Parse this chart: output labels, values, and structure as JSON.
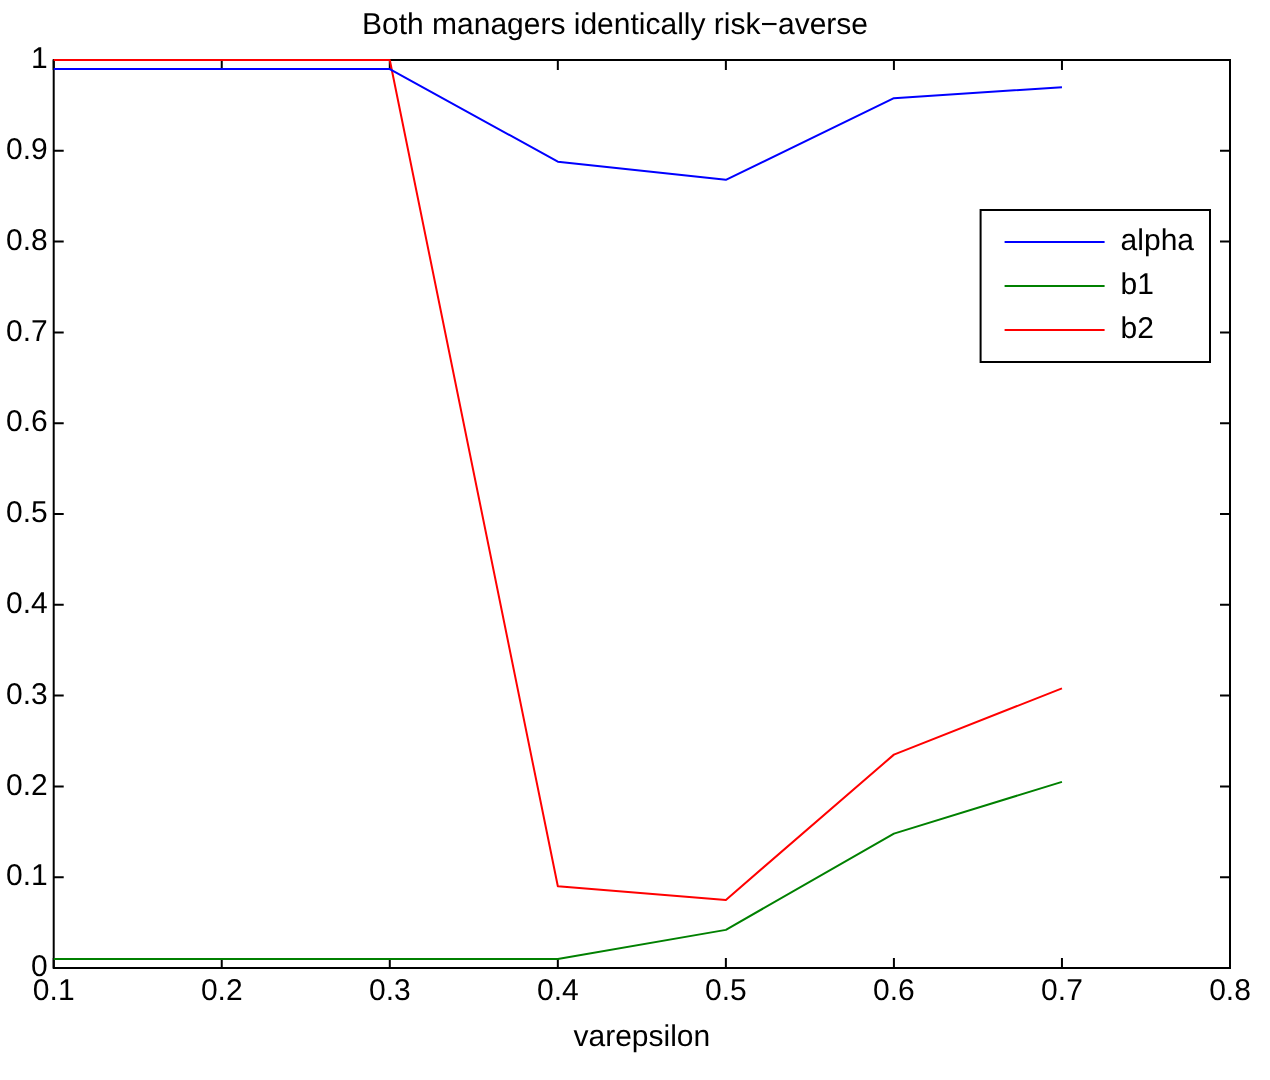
{
  "chart_data": {
    "type": "line",
    "title": "Both managers identically risk−averse",
    "xlabel": "varepsilon",
    "x": [
      0.1,
      0.2,
      0.3,
      0.4,
      0.5,
      0.6,
      0.7
    ],
    "series": [
      {
        "name": "alpha",
        "color": "#0000ff",
        "values": [
          0.99,
          0.99,
          0.99,
          0.888,
          0.868,
          0.958,
          0.97
        ]
      },
      {
        "name": "b1",
        "color": "#008000",
        "values": [
          0.01,
          0.01,
          0.01,
          0.01,
          0.042,
          0.148,
          0.205
        ]
      },
      {
        "name": "b2",
        "color": "#ff0000",
        "values": [
          1,
          1,
          1,
          0.09,
          0.075,
          0.235,
          0.308
        ]
      }
    ],
    "xlim": [
      0.1,
      0.8
    ],
    "xticks": [
      0.1,
      0.2,
      0.3,
      0.4,
      0.5,
      0.6,
      0.7,
      0.8
    ],
    "ylim": [
      0,
      1
    ],
    "yticks": [
      0,
      0.1,
      0.2,
      0.3,
      0.4,
      0.5,
      0.6,
      0.7,
      0.8,
      0.9,
      1
    ],
    "grid": false,
    "legend": "top right",
    "marker": "none",
    "line_style": "solid"
  }
}
